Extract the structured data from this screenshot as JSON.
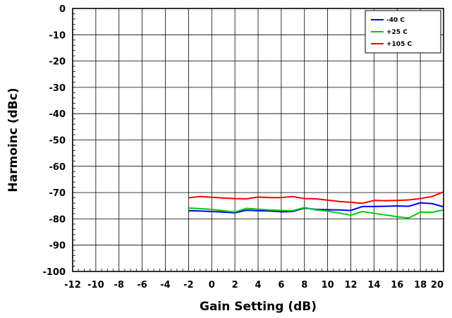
{
  "chart_data": {
    "type": "line",
    "title": "",
    "xlabel": "Gain Setting (dB)",
    "ylabel": "Harmoinc (dBc)",
    "xlim": [
      -12,
      20
    ],
    "ylim": [
      -100,
      0
    ],
    "x_ticks": [
      -12,
      -10,
      -8,
      -6,
      -4,
      -2,
      0,
      2,
      4,
      6,
      8,
      10,
      12,
      14,
      16,
      18,
      20
    ],
    "y_ticks": [
      0,
      -10,
      -20,
      -30,
      -40,
      -50,
      -60,
      -70,
      -80,
      -90,
      -100
    ],
    "grid": true,
    "legend_position": "top-right",
    "series": [
      {
        "name": "-40 C",
        "color": "#0000ff",
        "x": [
          -2,
          -1,
          0,
          1,
          2,
          3,
          4,
          5,
          6,
          7,
          8,
          9,
          10,
          11,
          12,
          13,
          14,
          15,
          16,
          17,
          18,
          19,
          20
        ],
        "y": [
          -76.9,
          -77.0,
          -77.2,
          -77.4,
          -77.7,
          -76.7,
          -76.9,
          -77.0,
          -77.3,
          -77.2,
          -75.9,
          -76.4,
          -76.5,
          -76.6,
          -76.8,
          -75.3,
          -75.3,
          -75.2,
          -75.1,
          -75.2,
          -73.9,
          -74.2,
          -75.4
        ]
      },
      {
        "name": "+25 C",
        "color": "#00cc00",
        "x": [
          -2,
          -1,
          0,
          1,
          2,
          3,
          4,
          5,
          6,
          7,
          8,
          9,
          10,
          11,
          12,
          13,
          14,
          15,
          16,
          17,
          18,
          19,
          20
        ],
        "y": [
          -75.9,
          -76.1,
          -76.4,
          -76.9,
          -77.4,
          -76.0,
          -76.3,
          -76.6,
          -76.8,
          -76.9,
          -75.7,
          -76.6,
          -77.0,
          -77.8,
          -78.6,
          -77.2,
          -77.9,
          -78.5,
          -79.2,
          -79.7,
          -77.4,
          -77.5,
          -76.6
        ]
      },
      {
        "name": "+105 C",
        "color": "#ff0000",
        "x": [
          -2,
          -1,
          0,
          1,
          2,
          3,
          4,
          5,
          6,
          7,
          8,
          9,
          10,
          11,
          12,
          13,
          14,
          15,
          16,
          17,
          18,
          19,
          20
        ],
        "y": [
          -72.0,
          -71.5,
          -71.8,
          -72.1,
          -72.3,
          -72.4,
          -71.7,
          -71.9,
          -71.9,
          -71.5,
          -72.3,
          -72.4,
          -72.9,
          -73.4,
          -73.7,
          -74.1,
          -73.0,
          -73.1,
          -73.0,
          -72.8,
          -72.3,
          -71.5,
          -69.8
        ]
      }
    ]
  }
}
